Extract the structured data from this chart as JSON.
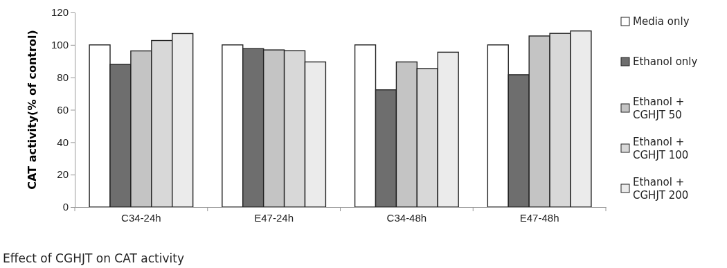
{
  "chart_data": {
    "type": "bar",
    "title": "Effect of CGHJT on CAT activity",
    "ylabel": "CAT activity(% of control)",
    "categories": [
      "C34-24h",
      "E47-24h",
      "C34-48h",
      "E47-48h"
    ],
    "series": [
      {
        "name": "Media only",
        "color": "#ffffff",
        "values": [
          100,
          100,
          100,
          100
        ]
      },
      {
        "name": "Ethanol only",
        "color": "#6e6e6e",
        "values": [
          88,
          97.7,
          72.3,
          81.6
        ]
      },
      {
        "name": "Ethanol + CGHJT 50",
        "color": "#c4c4c4",
        "values": [
          96.3,
          96.9,
          89.5,
          105.5
        ]
      },
      {
        "name": "Ethanol + CGHJT 100",
        "color": "#d8d8d8",
        "values": [
          102.7,
          96.4,
          85.4,
          107.1
        ]
      },
      {
        "name": "Ethanol + CGHJT 200",
        "color": "#ebebeb",
        "values": [
          107,
          89.5,
          95.5,
          108.6
        ]
      }
    ],
    "ylim": [
      0,
      120
    ],
    "yticks": [
      0,
      20,
      40,
      60,
      80,
      100,
      120
    ],
    "grid": false,
    "legend": "right"
  }
}
